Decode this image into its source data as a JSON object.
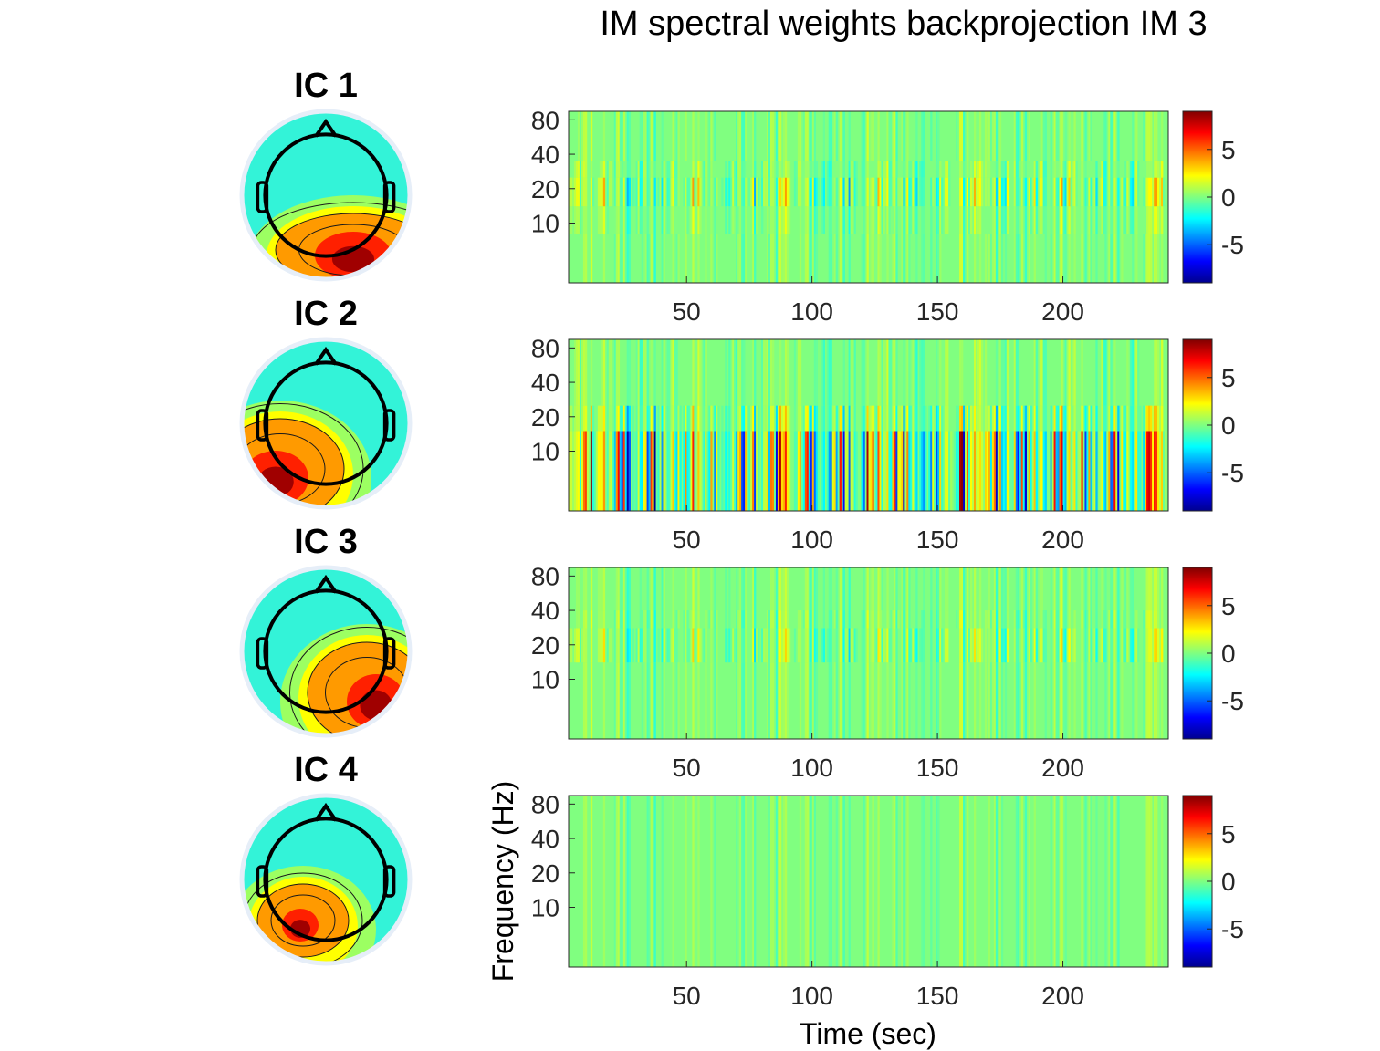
{
  "title": "IM spectral weights backprojection IM 3",
  "chart_data": {
    "type": "heatmap",
    "title": "IM spectral weights backprojection IM 3",
    "xlabel": "Time (sec)",
    "ylabel": "Frequency (Hz)",
    "xlim": [
      3,
      242
    ],
    "x_ticks": [
      50,
      100,
      150,
      200
    ],
    "y_axis_scale": "log",
    "ylim": [
      3,
      95
    ],
    "y_ticks": [
      10,
      20,
      40,
      80
    ],
    "colormap": "jet",
    "clim": [
      -9,
      9
    ],
    "colorbar_ticks": [
      -5,
      0,
      5
    ],
    "colorbar_location": "right",
    "panels": [
      {
        "label": "IC 1",
        "topography": "posterior-right positive maximum (red)",
        "band_activity": [
          {
            "freq_range": [
              3,
              8
            ],
            "peak_amplitude": 1.5
          },
          {
            "freq_range": [
              8,
              14
            ],
            "peak_amplitude": 2
          },
          {
            "freq_range": [
              14,
              25
            ],
            "peak_amplitude": 4
          },
          {
            "freq_range": [
              25,
              35
            ],
            "peak_amplitude": 2
          },
          {
            "freq_range": [
              35,
              95
            ],
            "peak_amplitude": 1.5
          }
        ]
      },
      {
        "label": "IC 2",
        "topography": "posterior-left positive maximum (red)",
        "band_activity": [
          {
            "freq_range": [
              3,
              15
            ],
            "peak_amplitude": 9
          },
          {
            "freq_range": [
              15,
              25
            ],
            "peak_amplitude": 4
          },
          {
            "freq_range": [
              25,
              95
            ],
            "peak_amplitude": 1.5
          }
        ]
      },
      {
        "label": "IC 3",
        "topography": "posterior-right positive maximum (red)",
        "band_activity": [
          {
            "freq_range": [
              3,
              14
            ],
            "peak_amplitude": 1.5
          },
          {
            "freq_range": [
              14,
              28
            ],
            "peak_amplitude": 3
          },
          {
            "freq_range": [
              28,
              40
            ],
            "peak_amplitude": 2
          },
          {
            "freq_range": [
              40,
              95
            ],
            "peak_amplitude": 1.5
          }
        ]
      },
      {
        "label": "IC 4",
        "topography": "left-posterior focal positive maximum (red)",
        "band_activity": [
          {
            "freq_range": [
              3,
              95
            ],
            "peak_amplitude": 1.2
          }
        ]
      }
    ]
  },
  "colors": {
    "background": "#ffffff",
    "axis": "#262626",
    "colormap_stops": [
      "#00008f",
      "#0000ff",
      "#00ffff",
      "#80ff80",
      "#ffff00",
      "#ff0000",
      "#800000"
    ]
  }
}
